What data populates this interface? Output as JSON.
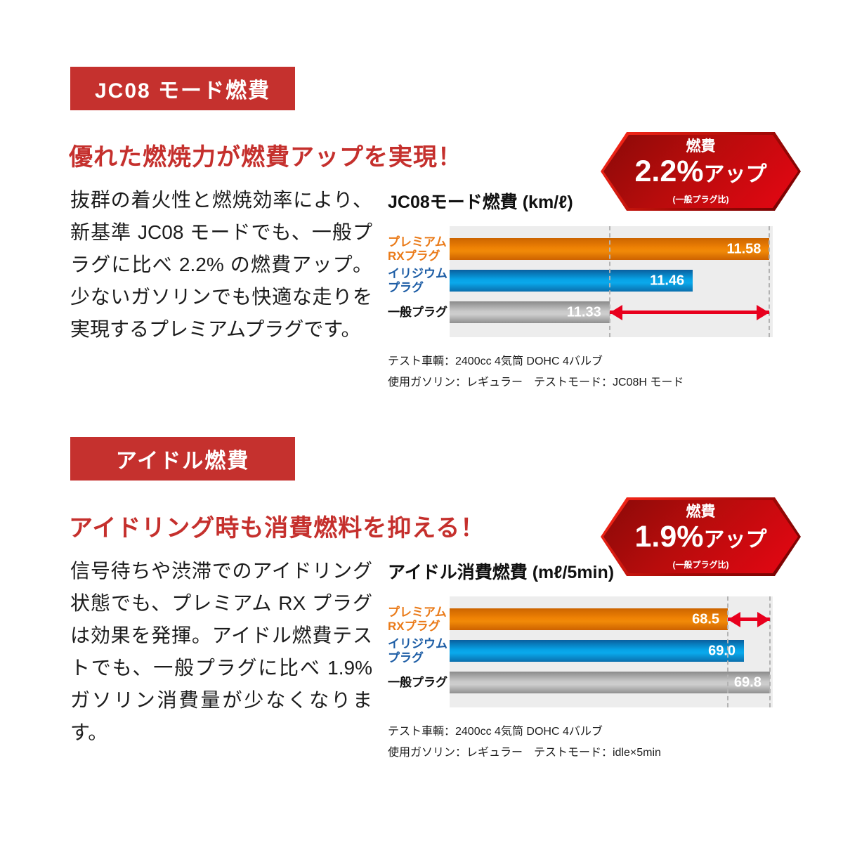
{
  "colors": {
    "badge_red": "#c5312e",
    "heading_red": "#c5302d",
    "hexagon_red": "#e60613",
    "bar_orange": "#ef8204",
    "bar_blue": "#07a3e6",
    "bar_gray": "#b5b5b5",
    "arrow_red": "#e8001e",
    "plot_background": "#ededed"
  },
  "sections": [
    {
      "badge_label": "JC08 モード燃費",
      "heading": "優れた燃焼力が燃費アップを実現！",
      "body": "抜群の着火性と燃焼効率により、新基準 JC08 モードでも、一般プラグに比べ 2.2% の燃費アップ。少ないガソリンでも快適な走りを実現するプレミアムプラグです。",
      "hex_badge": {
        "top": "燃費",
        "value": "2.2%",
        "suffix": "アップ",
        "note": "(一般プラグ比)"
      },
      "chart_title": "JC08モード燃費 (km/ℓ)",
      "notes": [
        "テスト車輌：2400cc 4気筒 DOHC 4バルブ",
        "使用ガソリン：レギュラー　テストモード：JC08H モード"
      ]
    },
    {
      "badge_label": "アイドル燃費",
      "heading": "アイドリング時も消費燃料を抑える！",
      "body": "信号待ちや渋滞でのアイドリング状態でも、プレミアム RX プラグは効果を発揮。アイドル燃費テストでも、一般プラグに比べ 1.9% ガソリン消費量が少なくなります。",
      "hex_badge": {
        "top": "燃費",
        "value": "1.9%",
        "suffix": "アップ",
        "note": "(一般プラグ比)"
      },
      "chart_title": "アイドル消費燃費 (mℓ/5min)",
      "notes": [
        "テスト車輌：2400cc 4気筒 DOHC 4バルブ",
        "使用ガソリン：レギュラー　テストモード：idle×5min"
      ]
    }
  ],
  "chart_data": [
    {
      "type": "bar",
      "orientation": "horizontal",
      "title": "JC08モード燃費 (km/ℓ)",
      "unit": "km/ℓ",
      "categories": [
        [
          "プレミアム",
          "RXプラグ"
        ],
        [
          "イリジウム",
          "プラグ"
        ],
        [
          "一般プラグ"
        ]
      ],
      "values": [
        11.58,
        11.46,
        11.33
      ],
      "value_labels": [
        "11.58",
        "11.46",
        "11.33"
      ],
      "bar_colors": [
        "orange",
        "blue",
        "gray"
      ],
      "xlim": [
        11.08,
        11.585
      ],
      "grid": false,
      "legend": false,
      "dash_values": [
        11.33,
        11.58
      ],
      "arrow": {
        "from": 11.33,
        "to": 11.58,
        "row": 2,
        "meaning": "2.2%アップ"
      }
    },
    {
      "type": "bar",
      "orientation": "horizontal",
      "title": "アイドル消費燃費 (mℓ/5min)",
      "unit": "mℓ/5min",
      "categories": [
        [
          "プレミアム",
          "RXプラグ"
        ],
        [
          "イリジウム",
          "プラグ"
        ],
        [
          "一般プラグ"
        ]
      ],
      "values": [
        68.5,
        69.0,
        69.8
      ],
      "value_labels": [
        "68.5",
        "69.0",
        "69.8"
      ],
      "bar_colors": [
        "orange",
        "blue",
        "gray"
      ],
      "xlim": [
        59.89,
        69.89
      ],
      "grid": false,
      "legend": false,
      "dash_values": [
        68.5,
        69.8
      ],
      "arrow": {
        "from": 68.5,
        "to": 69.8,
        "row": 0,
        "meaning": "1.9%アップ"
      }
    }
  ]
}
